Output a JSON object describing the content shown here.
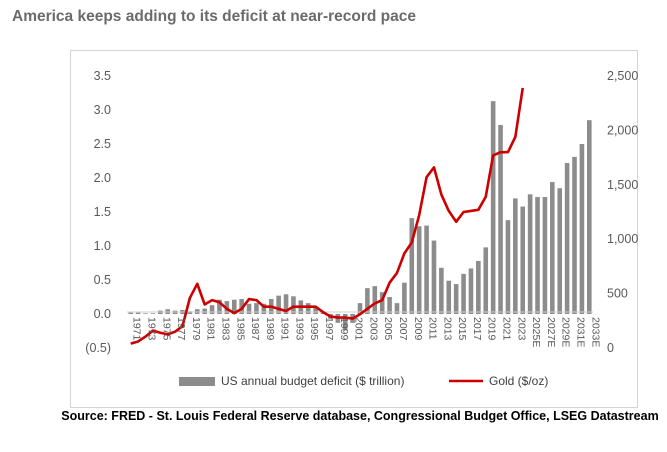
{
  "title": "America keeps adding to its deficit at near-record pace",
  "source": "Source: FRED - St. Louis Federal Reserve database, Congressional Budget Office, LSEG Datastream",
  "chart_data": {
    "type": "bar",
    "x": [
      1971,
      1972,
      1973,
      1974,
      1975,
      1976,
      1977,
      1978,
      1979,
      1980,
      1981,
      1982,
      1983,
      1984,
      1985,
      1986,
      1987,
      1988,
      1989,
      1990,
      1991,
      1992,
      1993,
      1994,
      1995,
      1996,
      1997,
      1998,
      1999,
      2000,
      2001,
      2002,
      2003,
      2004,
      2005,
      2006,
      2007,
      2008,
      2009,
      2010,
      2011,
      2012,
      2013,
      2014,
      2015,
      2016,
      2017,
      2018,
      2019,
      2020,
      2021,
      2022,
      2023,
      2024,
      2025,
      2026,
      2027,
      2028,
      2029,
      2030,
      2031,
      2032,
      2033
    ],
    "x_tick_labels": [
      "1971",
      "1973",
      "1975",
      "1977",
      "1979",
      "1981",
      "1983",
      "1985",
      "1987",
      "1989",
      "1991",
      "1993",
      "1995",
      "1997",
      "1999",
      "2001",
      "2003",
      "2005",
      "2007",
      "2009",
      "2011",
      "2013",
      "2015",
      "2017",
      "2019",
      "2021",
      "2023",
      "2025E",
      "2027E",
      "2029E",
      "2031E",
      "2033E"
    ],
    "series": [
      {
        "name": "US annual budget deficit ($ trillion)",
        "type": "bar",
        "axis": "left",
        "color": "#8c8c8c",
        "values": [
          0.02,
          0.02,
          0.01,
          0.01,
          0.05,
          0.07,
          0.05,
          0.06,
          0.04,
          0.07,
          0.08,
          0.13,
          0.21,
          0.19,
          0.21,
          0.22,
          0.15,
          0.16,
          0.15,
          0.22,
          0.27,
          0.29,
          0.26,
          0.2,
          0.16,
          0.11,
          0.02,
          -0.07,
          -0.13,
          -0.24,
          -0.13,
          0.16,
          0.38,
          0.41,
          0.32,
          0.25,
          0.16,
          0.46,
          1.41,
          1.29,
          1.3,
          1.08,
          0.68,
          0.49,
          0.44,
          0.59,
          0.67,
          0.78,
          0.98,
          3.13,
          2.78,
          1.38,
          1.7,
          1.58,
          1.76,
          1.72,
          1.72,
          1.94,
          1.85,
          2.22,
          2.31,
          2.5,
          2.85
        ]
      },
      {
        "name": "Gold ($/oz)",
        "type": "line",
        "axis": "right",
        "color": "#cc0000",
        "x": [
          1971,
          1972,
          1973,
          1974,
          1975,
          1976,
          1977,
          1978,
          1979,
          1980,
          1981,
          1982,
          1983,
          1984,
          1985,
          1986,
          1987,
          1988,
          1989,
          1990,
          1991,
          1992,
          1993,
          1994,
          1995,
          1996,
          1997,
          1998,
          1999,
          2000,
          2001,
          2002,
          2003,
          2004,
          2005,
          2006,
          2007,
          2008,
          2009,
          2010,
          2011,
          2012,
          2013,
          2014,
          2015,
          2016,
          2017,
          2018,
          2019,
          2020,
          2021,
          2022,
          2023,
          2024
        ],
        "values": [
          40,
          60,
          105,
          160,
          140,
          125,
          150,
          200,
          460,
          590,
          400,
          440,
          420,
          360,
          320,
          360,
          450,
          440,
          380,
          380,
          360,
          340,
          380,
          380,
          380,
          380,
          330,
          290,
          280,
          280,
          270,
          310,
          360,
          410,
          440,
          600,
          690,
          870,
          970,
          1220,
          1570,
          1660,
          1410,
          1260,
          1160,
          1250,
          1260,
          1270,
          1390,
          1770,
          1800,
          1800,
          1940,
          2390
        ]
      }
    ],
    "y_left": {
      "ticks": [
        "(0.5)",
        "0.0",
        "0.5",
        "1.0",
        "1.5",
        "2.0",
        "2.5",
        "3.0",
        "3.5"
      ],
      "min": -0.5,
      "max": 3.5
    },
    "y_right": {
      "ticks": [
        "0",
        "500",
        "1,000",
        "1,500",
        "2,000",
        "2,500"
      ],
      "min": 0,
      "max": 2500
    },
    "grid": false,
    "legend_position": "bottom"
  }
}
